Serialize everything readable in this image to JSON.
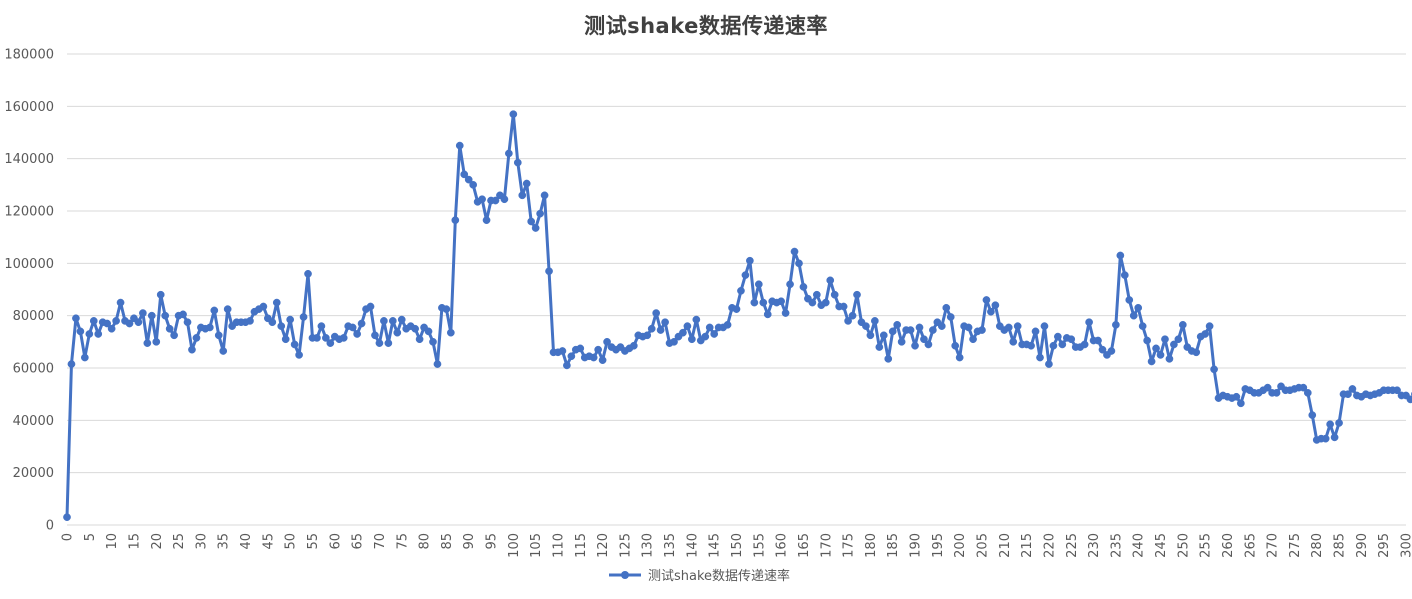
{
  "chart_data": {
    "type": "line",
    "title": "测试shake数据传递速率",
    "xlabel": "",
    "ylabel": "",
    "ylim": [
      0,
      180000
    ],
    "yticks": [
      0,
      20000,
      40000,
      60000,
      80000,
      100000,
      120000,
      140000,
      160000,
      180000
    ],
    "xlim": [
      0,
      300
    ],
    "xticks": [
      0,
      5,
      10,
      15,
      20,
      25,
      30,
      35,
      40,
      45,
      50,
      55,
      60,
      65,
      70,
      75,
      80,
      85,
      90,
      95,
      100,
      105,
      110,
      115,
      120,
      125,
      130,
      135,
      140,
      145,
      150,
      155,
      160,
      165,
      170,
      175,
      180,
      185,
      190,
      195,
      200,
      205,
      210,
      215,
      220,
      225,
      230,
      235,
      240,
      245,
      250,
      255,
      260,
      265,
      270,
      275,
      280,
      285,
      290,
      295,
      300
    ],
    "grid": "horizontal",
    "legend": "bottom-center",
    "colors": {
      "series": "#4472C4",
      "grid": "#D9D9D9",
      "axis_text": "#595959"
    },
    "series": [
      {
        "name": "测试shake数据传递速率",
        "x_start": 0,
        "x_step": 1,
        "values": [
          3000,
          61500,
          79000,
          74000,
          64000,
          73000,
          78000,
          73000,
          77500,
          77000,
          75000,
          78000,
          85000,
          78000,
          77000,
          79000,
          77500,
          81000,
          69500,
          80000,
          70000,
          88000,
          80000,
          75000,
          72500,
          80000,
          80500,
          77500,
          67000,
          71500,
          75500,
          75000,
          75500,
          82000,
          72500,
          66500,
          82500,
          76000,
          77500,
          77500,
          77500,
          78000,
          81500,
          82500,
          83500,
          79000,
          77500,
          85000,
          76000,
          71000,
          78500,
          69000,
          65000,
          79500,
          96000,
          71500,
          71500,
          76000,
          71500,
          69500,
          72000,
          71000,
          71500,
          76000,
          75500,
          73000,
          77000,
          82500,
          83500,
          72500,
          69500,
          78000,
          69500,
          78000,
          73500,
          78500,
          75000,
          76000,
          75000,
          71000,
          75500,
          74000,
          70000,
          61500,
          83000,
          82500,
          73500,
          116500,
          145000,
          134000,
          132000,
          130000,
          123500,
          124500,
          116500,
          124000,
          124000,
          126000,
          124500,
          142000,
          157000,
          138500,
          126000,
          130500,
          116000,
          113500,
          119000,
          126000,
          97000,
          66000,
          66000,
          66500,
          61000,
          64500,
          67000,
          67500,
          64000,
          64500,
          64000,
          67000,
          63000,
          70000,
          68000,
          67000,
          68000,
          66500,
          67500,
          68500,
          72500,
          72000,
          72500,
          75000,
          81000,
          74500,
          77500,
          69500,
          70000,
          72000,
          73500,
          76000,
          71000,
          78500,
          70500,
          72000,
          75500,
          73000,
          75500,
          75500,
          76500,
          83000,
          82500,
          89500,
          95500,
          101000,
          85000,
          92000,
          85000,
          80500,
          85500,
          85000,
          85500,
          81000,
          92000,
          104500,
          100000,
          91000,
          86500,
          85000,
          88000,
          84000,
          85000,
          93500,
          88000,
          83500,
          83500,
          78000,
          80000,
          88000,
          77500,
          76000,
          72500,
          78000,
          68000,
          72500,
          63500,
          74000,
          76500,
          70000,
          74500,
          74500,
          68500,
          75500,
          71000,
          69000,
          74500,
          77500,
          76000,
          83000,
          79500,
          68500,
          64000,
          76000,
          75500,
          71000,
          74000,
          74500,
          86000,
          81500,
          84000,
          76000,
          74500,
          75500,
          70000,
          76000,
          69000,
          69000,
          68500,
          74000,
          64000,
          76000,
          61500,
          68500,
          72000,
          69000,
          71500,
          71000,
          68000,
          68000,
          69000,
          77500,
          70500,
          70500,
          67000,
          65000,
          66500,
          76500,
          103000,
          95500,
          86000,
          80000,
          83000,
          76000,
          70500,
          62500,
          67500,
          65000,
          71000,
          63500,
          69000,
          71000,
          76500,
          68000,
          66500,
          66000,
          72000,
          73000,
          76000,
          59500,
          48500,
          49500,
          49000,
          48500,
          49000,
          46500,
          52000,
          51500,
          50500,
          50500,
          51500,
          52500,
          50500,
          50500,
          53000,
          51500,
          51500,
          52000,
          52500,
          52500,
          50500,
          42000,
          32500,
          33000,
          33000,
          38500,
          33500,
          39000,
          50000,
          50000,
          52000,
          49500,
          49000,
          50000,
          49500,
          50000,
          50500,
          51500,
          51500,
          51500,
          51500,
          49500,
          49500,
          48000,
          50000
        ]
      }
    ]
  }
}
